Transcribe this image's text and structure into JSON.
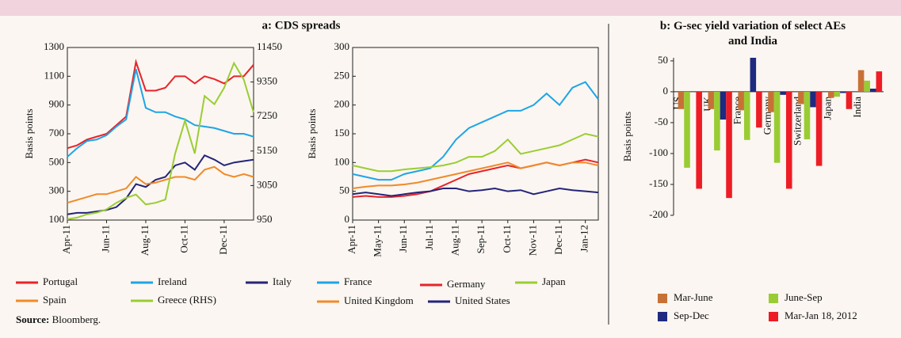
{
  "panel_title": "a: CDS spreads",
  "source_label": "Source:",
  "source": "Bloomberg.",
  "chart_data": [
    {
      "type": "line",
      "ylabel": "Basis points",
      "categories": [
        "Apr-11",
        null,
        null,
        null,
        "Jun-11",
        null,
        null,
        null,
        "Aug-11",
        null,
        null,
        null,
        "Oct-11",
        null,
        null,
        null,
        "Dec-11",
        null,
        null,
        null
      ],
      "ylim": [
        100,
        1300
      ],
      "yticks": [
        100,
        300,
        500,
        700,
        900,
        1100,
        1300
      ],
      "y2lim": [
        950,
        11450
      ],
      "y2ticks": [
        950,
        3050,
        5150,
        7250,
        9350,
        11450
      ],
      "series": [
        {
          "name": "Portugal",
          "color": "#e8232a",
          "values": [
            600,
            620,
            660,
            680,
            700,
            760,
            820,
            1200,
            1000,
            1000,
            1020,
            1100,
            1100,
            1050,
            1100,
            1080,
            1050,
            1100,
            1100,
            1180
          ]
        },
        {
          "name": "Ireland",
          "color": "#1ea5e6",
          "values": [
            540,
            600,
            650,
            660,
            690,
            750,
            800,
            1150,
            880,
            850,
            850,
            820,
            800,
            760,
            750,
            740,
            720,
            700,
            700,
            680
          ]
        },
        {
          "name": "Italy",
          "color": "#24247a",
          "values": [
            140,
            150,
            150,
            160,
            170,
            190,
            250,
            350,
            330,
            380,
            400,
            480,
            500,
            450,
            550,
            520,
            480,
            500,
            510,
            520
          ]
        },
        {
          "name": "Spain",
          "color": "#f08a2a",
          "values": [
            220,
            240,
            260,
            280,
            280,
            300,
            320,
            400,
            350,
            360,
            380,
            400,
            400,
            380,
            450,
            470,
            420,
            400,
            420,
            400
          ]
        },
        {
          "name": "Greece (RHS)",
          "color": "#9acd32",
          "axis": "y2",
          "values": [
            1000,
            1100,
            1300,
            1400,
            1600,
            2000,
            2300,
            2500,
            1900,
            2000,
            2200,
            5000,
            7000,
            5000,
            8500,
            8000,
            9000,
            10500,
            9500,
            7500
          ]
        }
      ]
    },
    {
      "type": "line",
      "ylabel": "Basis points",
      "categories": [
        "Apr-11",
        null,
        "May-11",
        null,
        "Jun-11",
        null,
        "Jul-11",
        null,
        "Aug-11",
        null,
        "Sep-11",
        null,
        "Oct-11",
        null,
        "Nov-11",
        null,
        "Dec-11",
        null,
        "Jan-12",
        null
      ],
      "ylim": [
        0,
        300
      ],
      "yticks": [
        0,
        50,
        100,
        150,
        200,
        250,
        300
      ],
      "series": [
        {
          "name": "France",
          "color": "#1ea5e6",
          "values": [
            80,
            75,
            70,
            70,
            80,
            85,
            90,
            110,
            140,
            160,
            170,
            180,
            190,
            190,
            200,
            220,
            200,
            230,
            240,
            210
          ]
        },
        {
          "name": "Germany",
          "color": "#e8232a",
          "values": [
            40,
            42,
            40,
            40,
            42,
            45,
            50,
            60,
            70,
            80,
            85,
            90,
            95,
            90,
            95,
            100,
            95,
            100,
            105,
            100
          ]
        },
        {
          "name": "Japan",
          "color": "#9acd32",
          "values": [
            95,
            90,
            85,
            85,
            88,
            90,
            92,
            95,
            100,
            110,
            110,
            120,
            140,
            115,
            120,
            125,
            130,
            140,
            150,
            145
          ]
        },
        {
          "name": "United Kingdom",
          "color": "#f08a2a",
          "values": [
            55,
            58,
            60,
            60,
            62,
            65,
            70,
            75,
            80,
            85,
            90,
            95,
            100,
            90,
            95,
            100,
            95,
            100,
            100,
            95
          ]
        },
        {
          "name": "United States",
          "color": "#24247a",
          "values": [
            45,
            48,
            45,
            42,
            45,
            48,
            50,
            55,
            55,
            50,
            52,
            55,
            50,
            52,
            45,
            50,
            55,
            52,
            50,
            48
          ]
        }
      ]
    },
    {
      "type": "bar",
      "title": "b: G-sec yield variation of select AEs and India",
      "ylabel": "Basis points",
      "categories": [
        "US",
        "UK",
        "France",
        "Germany",
        "Switzerland",
        "Japan",
        "India"
      ],
      "ylim": [
        -200,
        55
      ],
      "yticks": [
        -200,
        -150,
        -100,
        -50,
        0,
        50
      ],
      "series": [
        {
          "name": "Mar-June",
          "color": "#c87137",
          "values": [
            -28,
            -28,
            -30,
            -33,
            -20,
            -10,
            35
          ]
        },
        {
          "name": "June-Sep",
          "color": "#99cc33",
          "values": [
            -123,
            -95,
            -78,
            -115,
            -77,
            -8,
            18
          ]
        },
        {
          "name": "Sep-Dec",
          "color": "#1f2a80",
          "values": [
            0,
            -45,
            55,
            -5,
            -25,
            -2,
            5
          ]
        },
        {
          "name": "Mar-Jan 18, 2012",
          "color": "#ee1c25",
          "values": [
            -157,
            -172,
            -58,
            -157,
            -120,
            -28,
            33
          ]
        }
      ]
    }
  ]
}
